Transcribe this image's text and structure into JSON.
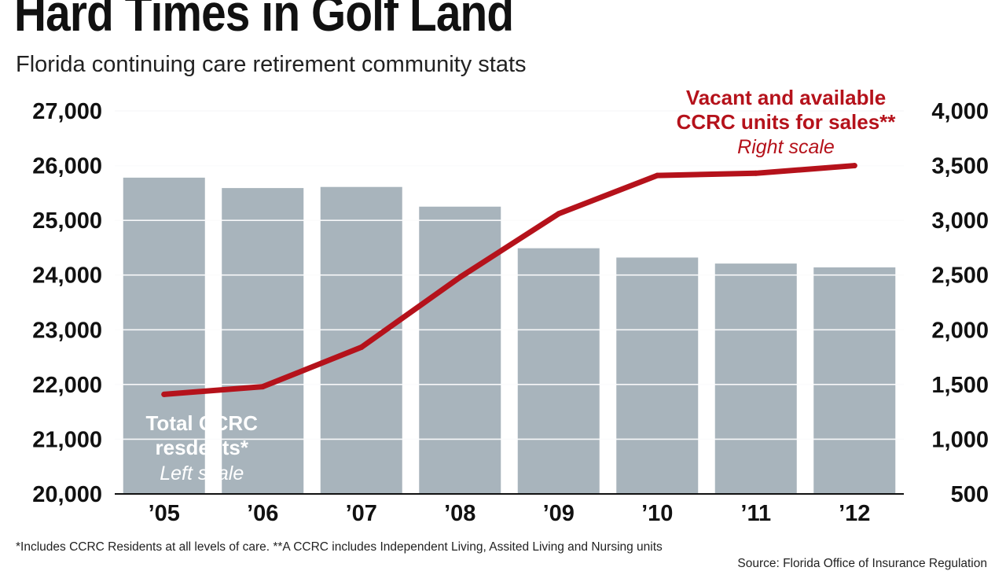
{
  "title": "Hard Times in Golf Land",
  "subtitle": "Florida continuing care retirement community stats",
  "footnote": "*Includes CCRC Residents at all levels of care. **A CCRC includes Independent Living, Assited Living and Nursing units",
  "source": "Source: Florida Office of Insurance Regulation",
  "colors": {
    "bars": "#a8b4bc",
    "line": "#b5121b",
    "grid": "#ffffff",
    "background": "#ffffff",
    "text": "#111111"
  },
  "chart_data": {
    "type": "bar",
    "categories": [
      "’05",
      "’06",
      "’07",
      "’08",
      "’09",
      "’10",
      "’11",
      "’12"
    ],
    "series": [
      {
        "name": "Total CCRC resdents*",
        "type": "bar",
        "axis": "left",
        "values": [
          25780,
          25590,
          25610,
          25250,
          24490,
          24320,
          24210,
          24140
        ]
      },
      {
        "name": "Vacant and available CCRC units for sales**",
        "type": "line",
        "axis": "right",
        "values": [
          1410,
          1480,
          1840,
          2480,
          3060,
          3410,
          3430,
          3500
        ]
      }
    ],
    "left_axis": {
      "range": [
        20000,
        27000
      ],
      "ticks": [
        20000,
        21000,
        22000,
        23000,
        24000,
        25000,
        26000,
        27000
      ],
      "tick_labels": [
        "20,000",
        "21,000",
        "22,000",
        "23,000",
        "24,000",
        "25,000",
        "26,000",
        "27,000"
      ]
    },
    "right_axis": {
      "range": [
        500,
        4000
      ],
      "ticks": [
        500,
        1000,
        1500,
        2000,
        2500,
        3000,
        3500,
        4000
      ],
      "tick_labels": [
        "500",
        "1,000",
        "1,500",
        "2,000",
        "2,500",
        "3,000",
        "3,500",
        "4,000"
      ]
    },
    "grid": true,
    "annotations": {
      "bar_label_line1": "Total CCRC",
      "bar_label_line2": "resdents*",
      "bar_label_scale": "Left scale",
      "line_label_line1": "Vacant and available",
      "line_label_line2": "CCRC units for sales**",
      "line_label_scale": "Right scale"
    }
  }
}
